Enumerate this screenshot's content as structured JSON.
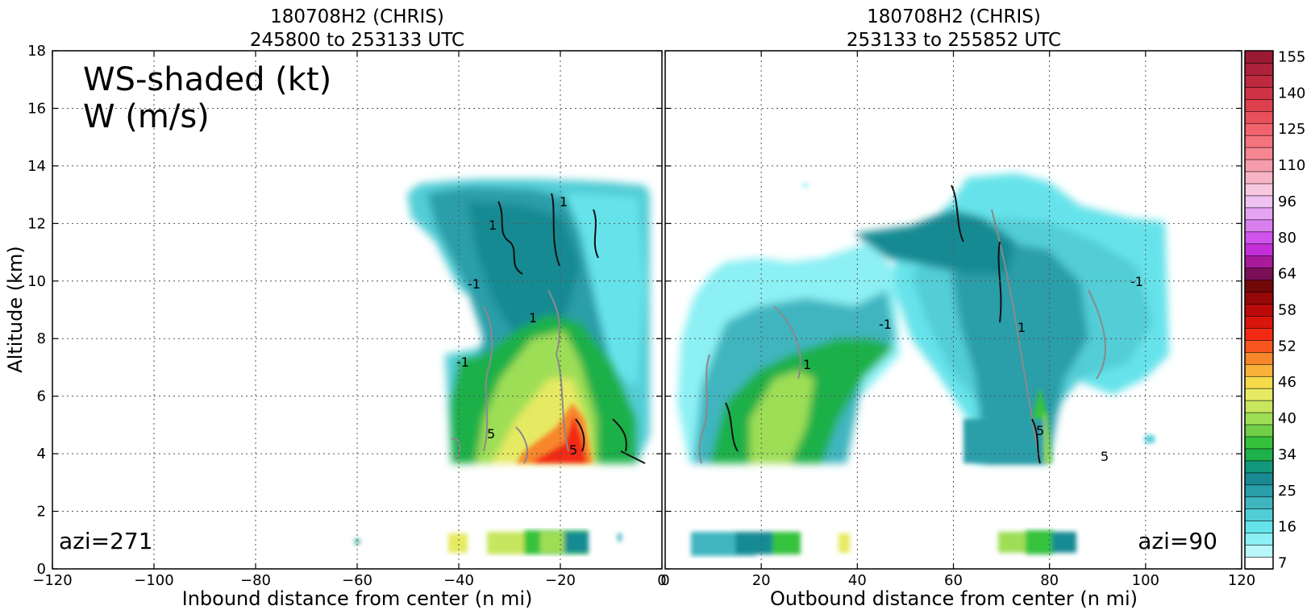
{
  "chart_data": [
    {
      "type": "heatmap",
      "panel": "left",
      "title_line1": "180708H2 (CHRIS)",
      "title_line2": "245800 to 253133 UTC",
      "xlabel": "Inbound distance from center (n mi)",
      "ylabel": "Altitude (km)",
      "xlim": [
        -120,
        0
      ],
      "ylim": [
        0,
        18
      ],
      "x_ticks": [
        "−120",
        "−100",
        "−80",
        "−60",
        "−40",
        "−20",
        "0"
      ],
      "y_ticks": [
        "0",
        "2",
        "4",
        "6",
        "8",
        "10",
        "12",
        "14",
        "16",
        "18"
      ],
      "grid": true,
      "annotation_line1": "WS-shaded (kt)",
      "annotation_line2": "W (m/s)",
      "azimuth_label": "azi=271",
      "fields": {
        "shaded": "wind speed (kt)",
        "contours": "vertical velocity (m/s)",
        "contour_labels": [
          "-1",
          "1",
          "5"
        ]
      },
      "main_region": {
        "x_range": [
          -52,
          -5
        ],
        "alt_range": [
          3.7,
          13.3
        ]
      },
      "near_surface_region": {
        "x_range": [
          -42,
          -12
        ],
        "alt_range": [
          0.4,
          1.2
        ]
      }
    },
    {
      "type": "heatmap",
      "panel": "right",
      "title_line1": "180708H2 (CHRIS)",
      "title_line2": "253133 to 255852 UTC",
      "xlabel": "Outbound distance from center (n mi)",
      "xlim": [
        0,
        120
      ],
      "ylim": [
        0,
        18
      ],
      "x_ticks": [
        "0",
        "20",
        "40",
        "60",
        "80",
        "100",
        "120"
      ],
      "grid": true,
      "azimuth_label": "azi=90",
      "fields": {
        "shaded": "wind speed (kt)",
        "contours": "vertical velocity (m/s)",
        "contour_labels": [
          "-1",
          "1",
          "5"
        ]
      },
      "main_region": {
        "x_range": [
          3,
          105
        ],
        "alt_range": [
          3.7,
          13.7
        ]
      },
      "near_surface_region": {
        "x_range": [
          5,
          86
        ],
        "alt_range": [
          0.3,
          1.3
        ]
      }
    }
  ],
  "colorbar": {
    "tick_labels": [
      "7",
      "16",
      "25",
      "34",
      "40",
      "46",
      "52",
      "58",
      "64",
      "80",
      "96",
      "110",
      "125",
      "140",
      "155"
    ],
    "bins": [
      {
        "lo": 7,
        "color": "#ffffff"
      },
      {
        "lo": 10,
        "color": "#b9f7fa"
      },
      {
        "lo": 13,
        "color": "#8cf0f4"
      },
      {
        "lo": 16,
        "color": "#66e3ea"
      },
      {
        "lo": 19,
        "color": "#52cdd6"
      },
      {
        "lo": 22,
        "color": "#3fb5bf"
      },
      {
        "lo": 25,
        "color": "#2a9ea9"
      },
      {
        "lo": 28,
        "color": "#198a93"
      },
      {
        "lo": 31,
        "color": "#12987a"
      },
      {
        "lo": 34,
        "color": "#1eb04a"
      },
      {
        "lo": 36,
        "color": "#34c23c"
      },
      {
        "lo": 38,
        "color": "#6fcf47"
      },
      {
        "lo": 40,
        "color": "#9ede56"
      },
      {
        "lo": 42,
        "color": "#c7e65e"
      },
      {
        "lo": 44,
        "color": "#e6ea62"
      },
      {
        "lo": 46,
        "color": "#f5da4a"
      },
      {
        "lo": 48,
        "color": "#f8b23a"
      },
      {
        "lo": 50,
        "color": "#f8862a"
      },
      {
        "lo": 52,
        "color": "#f7561f"
      },
      {
        "lo": 54,
        "color": "#f22a14"
      },
      {
        "lo": 56,
        "color": "#d9150c"
      },
      {
        "lo": 58,
        "color": "#bb0a0a"
      },
      {
        "lo": 60,
        "color": "#960808"
      },
      {
        "lo": 62,
        "color": "#720808"
      },
      {
        "lo": 64,
        "color": "#7a0f57"
      },
      {
        "lo": 70,
        "color": "#a81a9a"
      },
      {
        "lo": 75,
        "color": "#c42ed8"
      },
      {
        "lo": 80,
        "color": "#d053ec"
      },
      {
        "lo": 85,
        "color": "#db7ff0"
      },
      {
        "lo": 90,
        "color": "#e6a3f2"
      },
      {
        "lo": 96,
        "color": "#f0c2f2"
      },
      {
        "lo": 101,
        "color": "#f7c8e0"
      },
      {
        "lo": 105,
        "color": "#f8b4c6"
      },
      {
        "lo": 110,
        "color": "#f79cab"
      },
      {
        "lo": 115,
        "color": "#f78692"
      },
      {
        "lo": 120,
        "color": "#f5737d"
      },
      {
        "lo": 125,
        "color": "#f2626d"
      },
      {
        "lo": 130,
        "color": "#e8505c"
      },
      {
        "lo": 135,
        "color": "#de3f4c"
      },
      {
        "lo": 140,
        "color": "#cf3245"
      },
      {
        "lo": 145,
        "color": "#be2940"
      },
      {
        "lo": 150,
        "color": "#ad213a"
      },
      {
        "lo": 155,
        "color": "#9a1a33"
      }
    ]
  }
}
